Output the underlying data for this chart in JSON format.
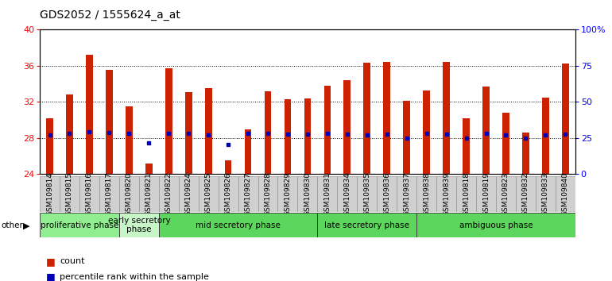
{
  "title": "GDS2052 / 1555624_a_at",
  "samples": [
    "GSM109814",
    "GSM109815",
    "GSM109816",
    "GSM109817",
    "GSM109820",
    "GSM109821",
    "GSM109822",
    "GSM109824",
    "GSM109825",
    "GSM109826",
    "GSM109827",
    "GSM109828",
    "GSM109829",
    "GSM109830",
    "GSM109831",
    "GSM109834",
    "GSM109835",
    "GSM109836",
    "GSM109837",
    "GSM109838",
    "GSM109839",
    "GSM109818",
    "GSM109819",
    "GSM109823",
    "GSM109832",
    "GSM109833",
    "GSM109840"
  ],
  "counts": [
    30.2,
    32.8,
    37.2,
    35.5,
    31.5,
    25.2,
    35.7,
    33.1,
    33.5,
    25.5,
    29.0,
    33.2,
    32.3,
    32.4,
    33.8,
    34.4,
    36.3,
    36.4,
    32.1,
    33.3,
    36.4,
    30.2,
    33.7,
    30.8,
    28.6,
    32.5,
    36.2
  ],
  "percentile_vals": [
    28.3,
    28.5,
    28.7,
    28.6,
    28.5,
    27.5,
    28.5,
    28.5,
    28.3,
    27.3,
    28.5,
    28.5,
    28.4,
    28.4,
    28.5,
    28.4,
    28.3,
    28.4,
    28.0,
    28.5,
    28.4,
    28.0,
    28.5,
    28.3,
    28.0,
    28.3,
    28.4
  ],
  "phases": [
    {
      "label": "proliferative phase",
      "start": 0,
      "end": 4,
      "color": "#90ee90"
    },
    {
      "label": "early secretory\nphase",
      "start": 4,
      "end": 6,
      "color": "#c8f5c8"
    },
    {
      "label": "mid secretory phase",
      "start": 6,
      "end": 14,
      "color": "#5cd65c"
    },
    {
      "label": "late secretory phase",
      "start": 14,
      "end": 19,
      "color": "#5cd65c"
    },
    {
      "label": "ambiguous phase",
      "start": 19,
      "end": 27,
      "color": "#5cd65c"
    }
  ],
  "ylim_left": [
    24,
    40
  ],
  "ylim_right": [
    0,
    100
  ],
  "bar_color": "#cc2200",
  "dot_color": "#0000bb",
  "bg_color": "#ffffff",
  "tick_bg": "#d0d0d0",
  "title_fontsize": 10,
  "tick_fontsize": 6.5,
  "phase_fontsize": 7.5
}
